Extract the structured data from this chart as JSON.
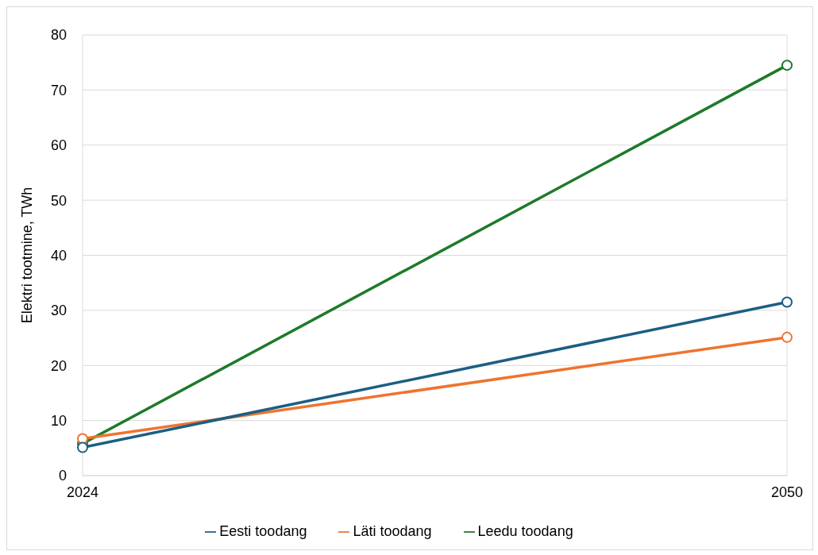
{
  "chart_data": {
    "type": "line",
    "ylabel": "Elektri tootmine, TWh",
    "x": [
      2024,
      2050
    ],
    "xlim": [
      2024,
      2050
    ],
    "xticks": [
      2024,
      2050
    ],
    "ylim": [
      0,
      80
    ],
    "yticks": [
      0,
      10,
      20,
      30,
      40,
      50,
      60,
      70,
      80
    ],
    "grid": true,
    "legend": "bottom",
    "marker": "circle",
    "line_style": "solid",
    "series": [
      {
        "name": "Eesti toodang",
        "color": "#1b5e83",
        "values": [
          5.1,
          31.5
        ]
      },
      {
        "name": "Läti toodang",
        "color": "#ee7430",
        "values": [
          6.7,
          25.1
        ]
      },
      {
        "name": "Leedu toodang",
        "color": "#1d7a2a",
        "values": [
          5.8,
          74.5
        ]
      }
    ]
  }
}
